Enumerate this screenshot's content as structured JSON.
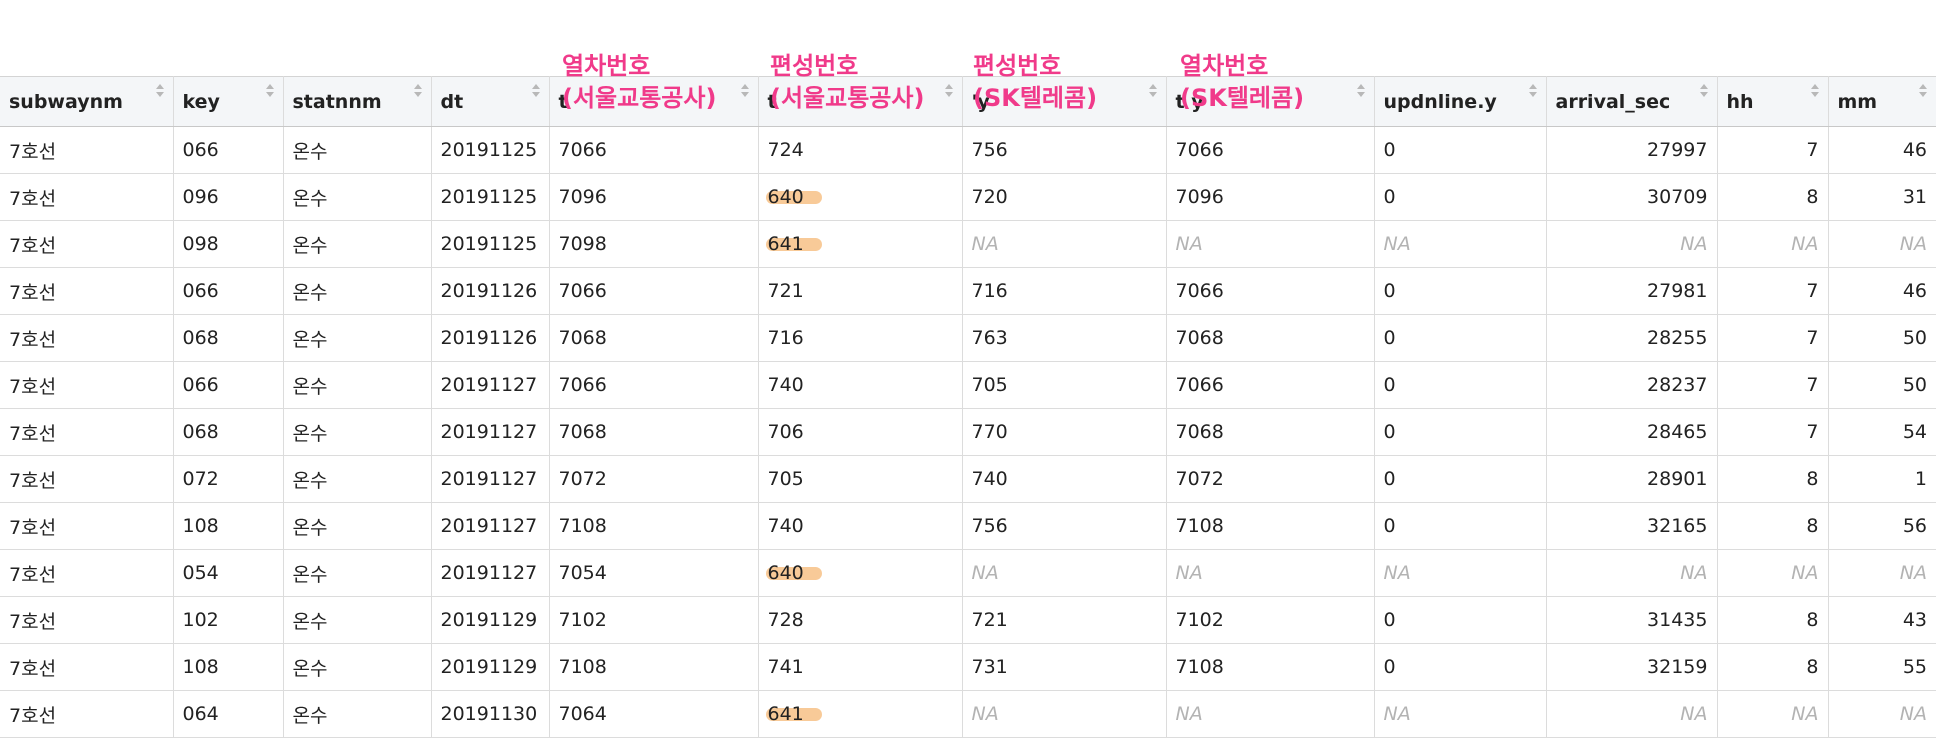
{
  "columns": [
    {
      "name": "subwaynm",
      "align": "left"
    },
    {
      "name": "key",
      "align": "left"
    },
    {
      "name": "statnnm",
      "align": "left"
    },
    {
      "name": "dt",
      "align": "left"
    },
    {
      "name": "t",
      "align": "left"
    },
    {
      "name": "t",
      "align": "left"
    },
    {
      "name": "'y",
      "align": "left"
    },
    {
      "name": "t y",
      "align": "left"
    },
    {
      "name": "updnline.y",
      "align": "left"
    },
    {
      "name": "arrival_sec",
      "align": "right"
    },
    {
      "name": "hh",
      "align": "right"
    },
    {
      "name": "mm",
      "align": "right"
    }
  ],
  "annotations": [
    {
      "line1": "열차번호",
      "line2": "(서울교통공사)"
    },
    {
      "line1": "편성번호",
      "line2": "(서울교통공사)"
    },
    {
      "line1": "편성번호",
      "line2": "(SK텔레콤)"
    },
    {
      "line1": "열차번호",
      "line2": "(SK텔레콤)"
    }
  ],
  "rows": [
    [
      "7호선",
      "066",
      "온수",
      "20191125",
      "7066",
      "724",
      "756",
      "7066",
      "0",
      "27997",
      "7",
      "46"
    ],
    [
      "7호선",
      "096",
      "온수",
      "20191125",
      "7096",
      "640",
      "720",
      "7096",
      "0",
      "30709",
      "8",
      "31"
    ],
    [
      "7호선",
      "098",
      "온수",
      "20191125",
      "7098",
      "641",
      "NA",
      "NA",
      "NA",
      "NA",
      "NA",
      "NA"
    ],
    [
      "7호선",
      "066",
      "온수",
      "20191126",
      "7066",
      "721",
      "716",
      "7066",
      "0",
      "27981",
      "7",
      "46"
    ],
    [
      "7호선",
      "068",
      "온수",
      "20191126",
      "7068",
      "716",
      "763",
      "7068",
      "0",
      "28255",
      "7",
      "50"
    ],
    [
      "7호선",
      "066",
      "온수",
      "20191127",
      "7066",
      "740",
      "705",
      "7066",
      "0",
      "28237",
      "7",
      "50"
    ],
    [
      "7호선",
      "068",
      "온수",
      "20191127",
      "7068",
      "706",
      "770",
      "7068",
      "0",
      "28465",
      "7",
      "54"
    ],
    [
      "7호선",
      "072",
      "온수",
      "20191127",
      "7072",
      "705",
      "740",
      "7072",
      "0",
      "28901",
      "8",
      "1"
    ],
    [
      "7호선",
      "108",
      "온수",
      "20191127",
      "7108",
      "740",
      "756",
      "7108",
      "0",
      "32165",
      "8",
      "56"
    ],
    [
      "7호선",
      "054",
      "온수",
      "20191127",
      "7054",
      "640",
      "NA",
      "NA",
      "NA",
      "NA",
      "NA",
      "NA"
    ],
    [
      "7호선",
      "102",
      "온수",
      "20191129",
      "7102",
      "728",
      "721",
      "7102",
      "0",
      "31435",
      "8",
      "43"
    ],
    [
      "7호선",
      "108",
      "온수",
      "20191129",
      "7108",
      "741",
      "731",
      "7108",
      "0",
      "32159",
      "8",
      "55"
    ],
    [
      "7호선",
      "064",
      "온수",
      "20191130",
      "7064",
      "641",
      "NA",
      "NA",
      "NA",
      "NA",
      "NA",
      "NA"
    ]
  ],
  "highlighted_cells": [
    [
      1,
      5
    ],
    [
      2,
      5
    ],
    [
      9,
      5
    ],
    [
      12,
      5
    ]
  ],
  "colors": {
    "annotation": "#f03a8a",
    "highlight": "#f7c48d",
    "na_text": "#b3b3b3",
    "header_bg": "#f4f6f8"
  }
}
